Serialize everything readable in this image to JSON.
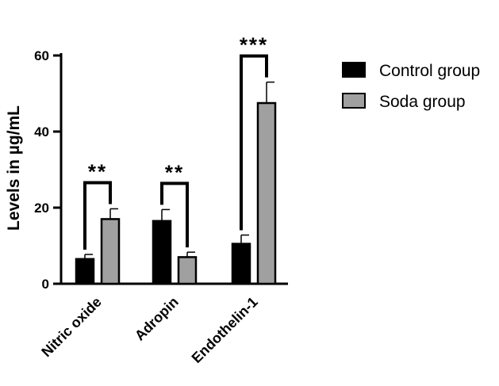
{
  "chart_data": {
    "type": "bar",
    "title": "",
    "xlabel": "",
    "ylabel": "Levels in µg/mL",
    "ylim": [
      0,
      60
    ],
    "yticks": [
      0,
      20,
      40,
      60
    ],
    "categories": [
      "Nitric oxide",
      "Adropin",
      "Endothelin-1"
    ],
    "series": [
      {
        "name": "Control group",
        "color": "#000000",
        "values": [
          6.5,
          16.5,
          10.5
        ],
        "errors": [
          1.2,
          3.0,
          2.3
        ]
      },
      {
        "name": "Soda group",
        "color": "#a0a0a0",
        "values": [
          17.0,
          7.0,
          47.5
        ],
        "errors": [
          2.7,
          1.3,
          5.5
        ]
      }
    ],
    "significance": [
      "**",
      "**",
      "***"
    ],
    "legend_position": "top-right",
    "grid": false
  }
}
